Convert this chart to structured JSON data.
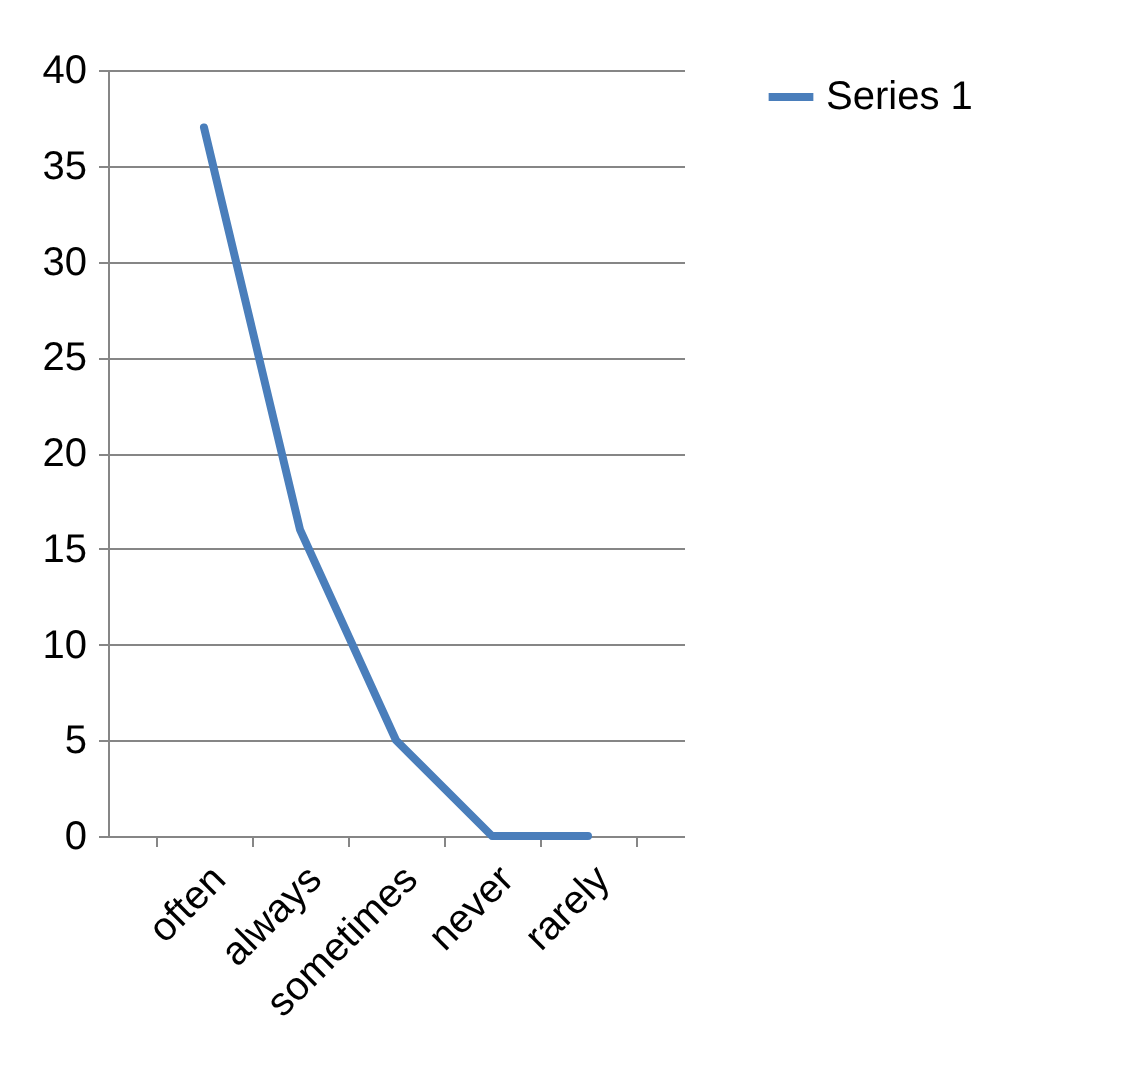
{
  "chart_data": {
    "type": "line",
    "categories": [
      "often",
      "always",
      "sometimes",
      "never",
      "rarely"
    ],
    "series": [
      {
        "name": "Series 1",
        "color": "#4a7ebb",
        "values": [
          37,
          16,
          5,
          0,
          0
        ]
      }
    ],
    "ylim": [
      0,
      40
    ],
    "yticks": [
      0,
      5,
      10,
      15,
      20,
      25,
      30,
      35,
      40
    ],
    "grid": "y",
    "legend": "right",
    "marker": "none",
    "line_style": "solid"
  }
}
